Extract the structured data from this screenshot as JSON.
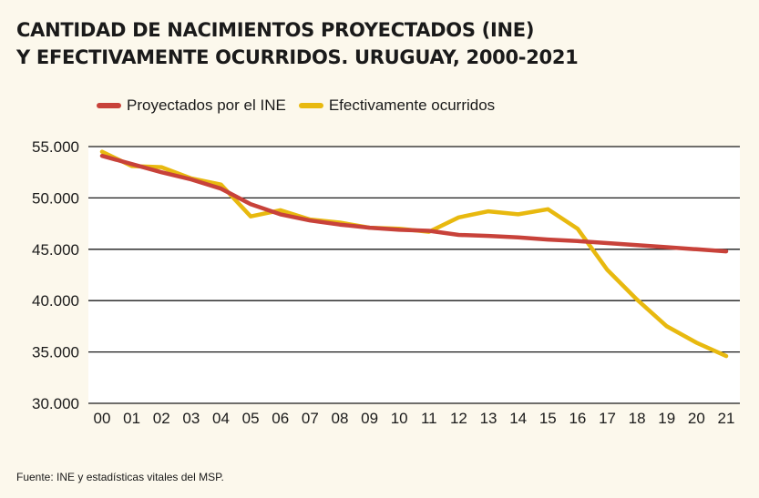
{
  "title": {
    "line1": "CANTIDAD DE NACIMIENTOS PROYECTADOS (INE)",
    "line2": "Y EFECTIVAMENTE OCURRIDOS. URUGUAY, 2000-2021"
  },
  "source": "Fuente: INE y estadísticas vitales del MSP.",
  "colors": {
    "projected": "#c8423a",
    "actual": "#e8b90f",
    "background": "#fcf8ec"
  },
  "chart_data": {
    "type": "line",
    "categories": [
      "00",
      "01",
      "02",
      "03",
      "04",
      "05",
      "06",
      "07",
      "08",
      "09",
      "10",
      "11",
      "12",
      "13",
      "14",
      "15",
      "16",
      "17",
      "18",
      "19",
      "20",
      "21"
    ],
    "series": [
      {
        "name": "Proyectados por el INE",
        "values": [
          54100,
          53300,
          52500,
          51800,
          50900,
          49400,
          48400,
          47800,
          47400,
          47100,
          46900,
          46800,
          46400,
          46300,
          46150,
          45950,
          45800,
          45600,
          45400,
          45200,
          45000,
          44800
        ]
      },
      {
        "name": "Efectivamente ocurridos",
        "values": [
          54500,
          53100,
          53000,
          51900,
          51300,
          48200,
          48800,
          47900,
          47600,
          47100,
          47000,
          46700,
          48100,
          48700,
          48400,
          48900,
          47000,
          43000,
          40100,
          37500,
          35900,
          34600
        ]
      }
    ],
    "ylim": [
      30000,
      55000
    ],
    "yticks": [
      "30.000",
      "35.000",
      "40.000",
      "45.000",
      "50.000",
      "55.000"
    ],
    "ytick_values": [
      30000,
      35000,
      40000,
      45000,
      50000,
      55000
    ],
    "grid": true,
    "legend_position": "top-left"
  }
}
